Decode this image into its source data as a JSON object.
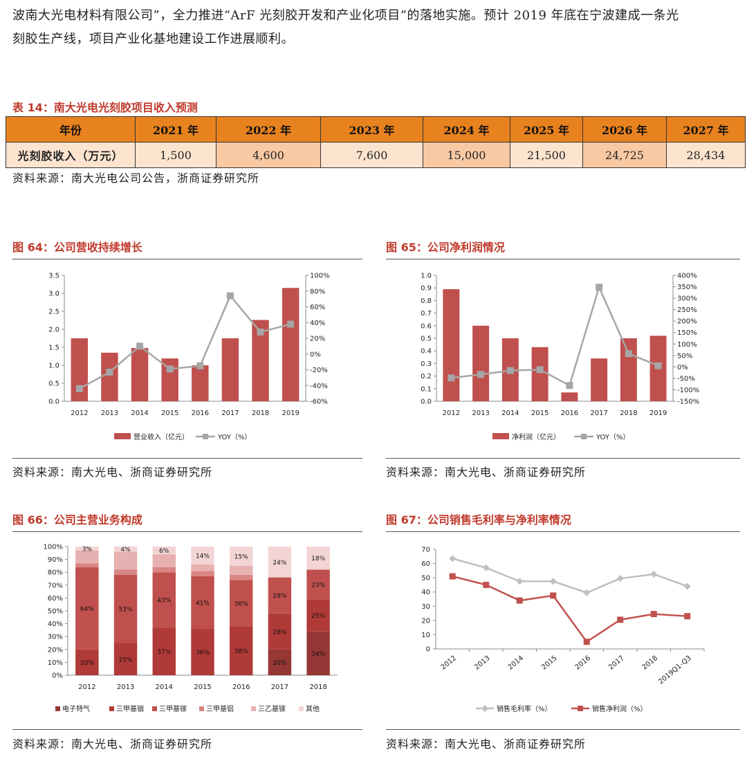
{
  "intro": {
    "line1": "波南大光电材料有限公司”，全力推进“ArF 光刻胶开发和产业化项目”的落地实施。预计 2019 年底在宁波建成一条光",
    "line2": "刻胶生产线，项目产业化基地建设工作进展顺利。"
  },
  "table14": {
    "title": "表 14：南大光电光刻胶项目收入预测",
    "header_label": "年份",
    "years": [
      "2021 年",
      "2022 年",
      "2023 年",
      "2024 年",
      "2025 年",
      "2026 年",
      "2027 年"
    ],
    "row_label": "光刻胶收入（万元）",
    "values": [
      "1,500",
      "4,600",
      "7,600",
      "15,000",
      "21,500",
      "24,725",
      "28,434"
    ],
    "source": "资料来源：南大光电公司公告，浙商证券研究所"
  },
  "fig64": {
    "title": "图 64：公司营收持续增长",
    "source": "资料来源：南大光电、浙商证券研究所",
    "chart_data": {
      "type": "bar",
      "categories": [
        "2012",
        "2013",
        "2014",
        "2015",
        "2016",
        "2017",
        "2018",
        "2019"
      ],
      "series": [
        {
          "name": "营业收入（亿元）",
          "type": "bar",
          "axis": "left",
          "values": [
            1.75,
            1.35,
            1.48,
            1.19,
            1.0,
            1.75,
            2.26,
            3.15
          ]
        },
        {
          "name": "YOY（%）",
          "type": "line",
          "axis": "right",
          "values": [
            -44,
            -23,
            10,
            -19,
            -15,
            74,
            28,
            38
          ]
        }
      ],
      "ylim_left": [
        0,
        3.5
      ],
      "yticks_left": [
        "0.0",
        "0.5",
        "1.0",
        "1.5",
        "2.0",
        "2.5",
        "3.0",
        "3.5"
      ],
      "ylim_right": [
        -60,
        100
      ],
      "yticks_right": [
        "-60%",
        "-40%",
        "-20%",
        "0%",
        "20%",
        "40%",
        "60%",
        "80%",
        "100%"
      ],
      "colors": {
        "bar": "#c0504d",
        "line": "#a6a6a6"
      }
    }
  },
  "fig65": {
    "title": "图 65：公司净利润情况",
    "source": "资料来源：南大光电、浙商证券研究所",
    "chart_data": {
      "type": "bar",
      "categories": [
        "2012",
        "2013",
        "2014",
        "2015",
        "2016",
        "2017",
        "2018",
        "2019"
      ],
      "series": [
        {
          "name": "净利润（亿元）",
          "type": "bar",
          "axis": "left",
          "values": [
            0.89,
            0.6,
            0.5,
            0.43,
            0.07,
            0.34,
            0.5,
            0.52
          ]
        },
        {
          "name": "YOY（%）",
          "type": "line",
          "axis": "right",
          "values": [
            -48,
            -33,
            -16,
            -12,
            -81,
            348,
            58,
            5
          ]
        }
      ],
      "ylim_left": [
        0,
        1.0
      ],
      "yticks_left": [
        "0.0",
        "0.1",
        "0.2",
        "0.3",
        "0.4",
        "0.5",
        "0.6",
        "0.7",
        "0.8",
        "0.9",
        "1.0"
      ],
      "ylim_right": [
        -150,
        400
      ],
      "yticks_right": [
        "-150%",
        "-100%",
        "-50%",
        "0%",
        "50%",
        "100%",
        "150%",
        "200%",
        "250%",
        "300%",
        "350%",
        "400%"
      ],
      "colors": {
        "bar": "#c0504d",
        "line": "#a6a6a6"
      }
    }
  },
  "fig66": {
    "title": "图 66：公司主营业务构成",
    "source": "资料来源：南大光电、浙商证券研究所",
    "chart_data": {
      "type": "bar",
      "stacked": true,
      "categories": [
        "2012",
        "2013",
        "2014",
        "2015",
        "2016",
        "2017",
        "2018"
      ],
      "series": [
        {
          "name": "电子特气",
          "values": [
            0,
            0,
            0,
            0,
            0,
            20,
            34
          ],
          "labels": [
            "0%",
            "0%",
            "0%",
            "0%",
            "0%",
            "20%",
            "34%"
          ],
          "color": "#953735"
        },
        {
          "name": "三甲基铟",
          "values": [
            20,
            25,
            37,
            36,
            38,
            28,
            25
          ],
          "labels": [
            "20%",
            "25%",
            "37%",
            "36%",
            "38%",
            "28%",
            "25%"
          ],
          "color": "#b03a37"
        },
        {
          "name": "三甲基镓",
          "values": [
            64,
            53,
            43,
            41,
            36,
            28,
            23
          ],
          "labels": [
            "64%",
            "53%",
            "43%",
            "41%",
            "36%",
            "28%",
            "23%"
          ],
          "color": "#c0504d"
        },
        {
          "name": "三甲基铝",
          "values": [
            3,
            4,
            4,
            4,
            4,
            0,
            0
          ],
          "labels": [
            "",
            "",
            "",
            "",
            "",
            "",
            ""
          ],
          "color": "#d88583"
        },
        {
          "name": "三乙基镓",
          "values": [
            10,
            14,
            10,
            5,
            7,
            0,
            0
          ],
          "labels": [
            "",
            "",
            "",
            "",
            "",
            "",
            ""
          ],
          "color": "#e6b1b0"
        },
        {
          "name": "其他",
          "values": [
            3,
            4,
            6,
            14,
            15,
            24,
            18
          ],
          "labels": [
            "3%",
            "4%",
            "6%",
            "14%",
            "15%",
            "24%",
            "18%"
          ],
          "color": "#f2d5d4"
        }
      ],
      "ylim": [
        0,
        100
      ],
      "yticks": [
        "0%",
        "10%",
        "20%",
        "30%",
        "40%",
        "50%",
        "60%",
        "70%",
        "80%",
        "90%",
        "100%"
      ]
    }
  },
  "fig67": {
    "title": "图 67：公司销售毛利率与净利率情况",
    "source": "资料来源：南大光电、浙商证券研究所",
    "chart_data": {
      "type": "line",
      "categories": [
        "2012",
        "2013",
        "2014",
        "2015",
        "2016",
        "2017",
        "2018",
        "2019Q1-Q3"
      ],
      "series": [
        {
          "name": "销售毛利率（%）",
          "values": [
            63.5,
            57,
            47.5,
            47.5,
            39.5,
            49.5,
            52.5,
            44
          ],
          "color": "#bfbfbf",
          "marker": "diamond"
        },
        {
          "name": "销售净利润（%）",
          "values": [
            51,
            45,
            34,
            37.5,
            5,
            20.5,
            24.5,
            23
          ],
          "color": "#c0504d",
          "marker": "square"
        }
      ],
      "ylim": [
        0,
        70
      ],
      "yticks": [
        "0",
        "10",
        "20",
        "30",
        "40",
        "50",
        "60",
        "70"
      ]
    }
  }
}
